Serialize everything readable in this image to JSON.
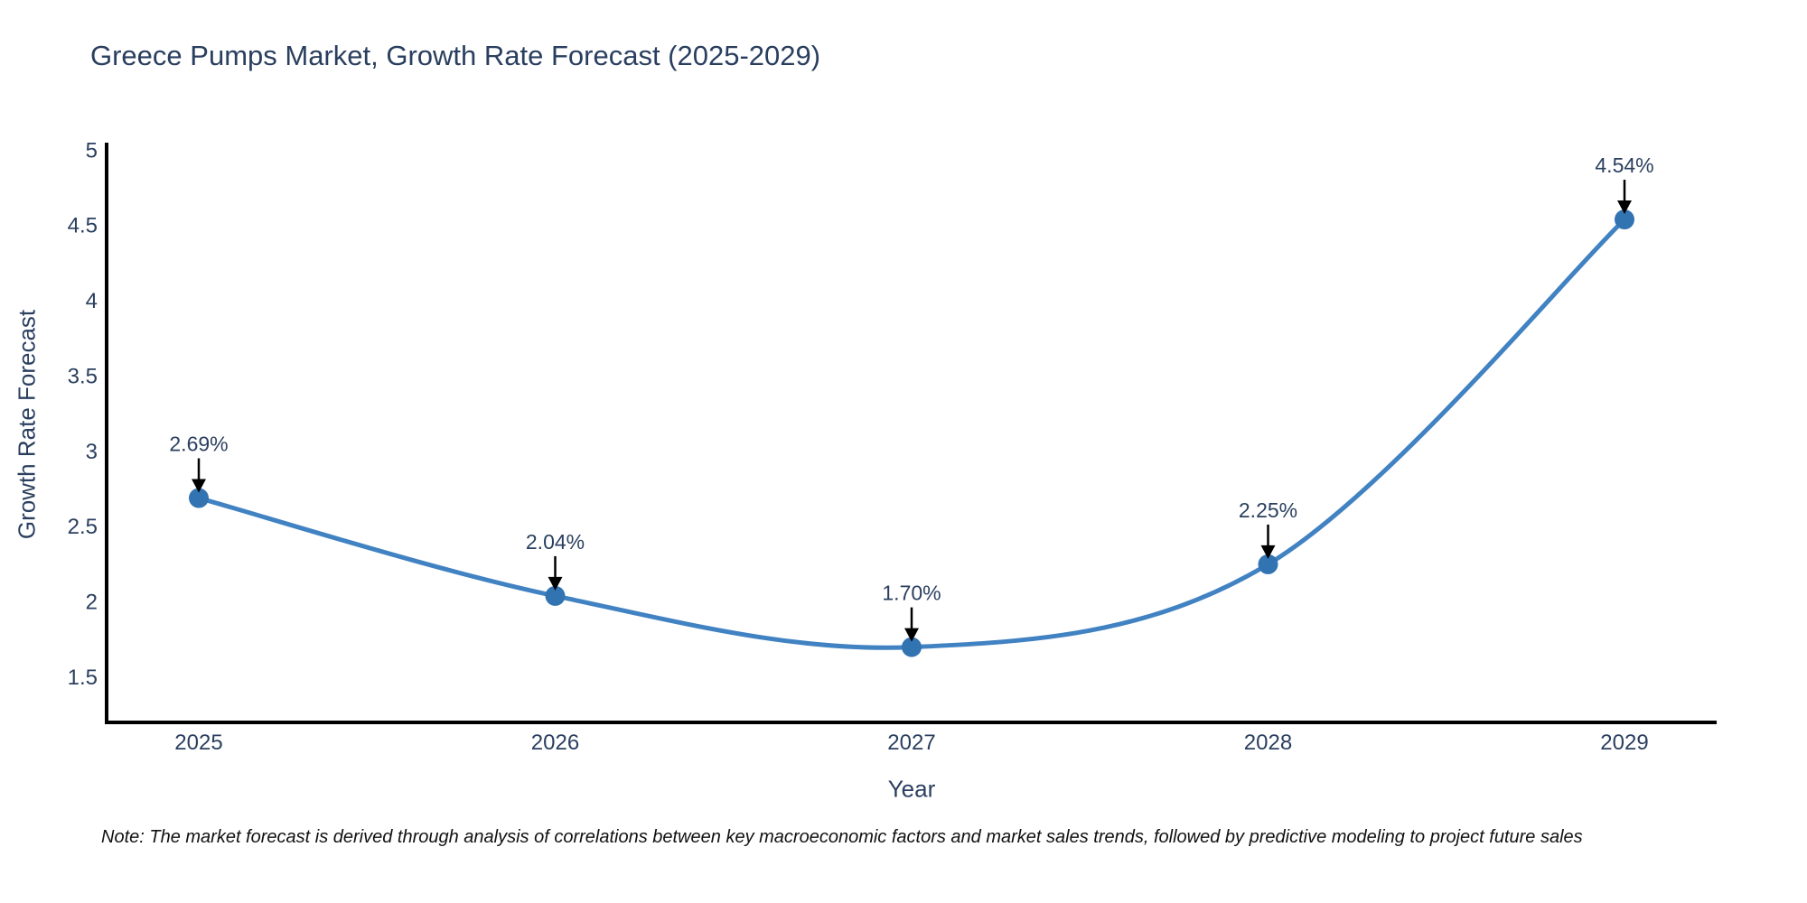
{
  "chart_data": {
    "type": "line",
    "title": "Greece Pumps Market, Growth Rate Forecast (2025-2029)",
    "xlabel": "Year",
    "ylabel": "Growth Rate Forecast",
    "categories": [
      "2025",
      "2026",
      "2027",
      "2028",
      "2029"
    ],
    "series": [
      {
        "name": "Growth Rate Forecast",
        "values": [
          2.69,
          2.04,
          1.7,
          2.25,
          4.54
        ],
        "point_labels": [
          "2.69%",
          "2.04%",
          "1.70%",
          "2.25%",
          "4.54%"
        ]
      }
    ],
    "yticks": [
      1.5,
      2,
      2.5,
      3,
      3.5,
      4,
      4.5,
      5
    ],
    "ytick_labels": [
      "1.5",
      "2",
      "2.5",
      "3",
      "3.5",
      "4",
      "4.5",
      "5"
    ],
    "ylim": [
      1.2,
      5.05
    ],
    "grid": false,
    "legend_position": "none",
    "line_shape": "spline",
    "colors": {
      "line": "#4182c2",
      "marker": "#3273b2",
      "axis_line": "#000000",
      "text": "#2a3f5f",
      "annotation_arrow": "#000000",
      "note_text": "#111111"
    },
    "note": "Note: The market forecast is derived through analysis of correlations between key macroeconomic factors and market sales trends, followed by predictive modeling to project future sales"
  }
}
